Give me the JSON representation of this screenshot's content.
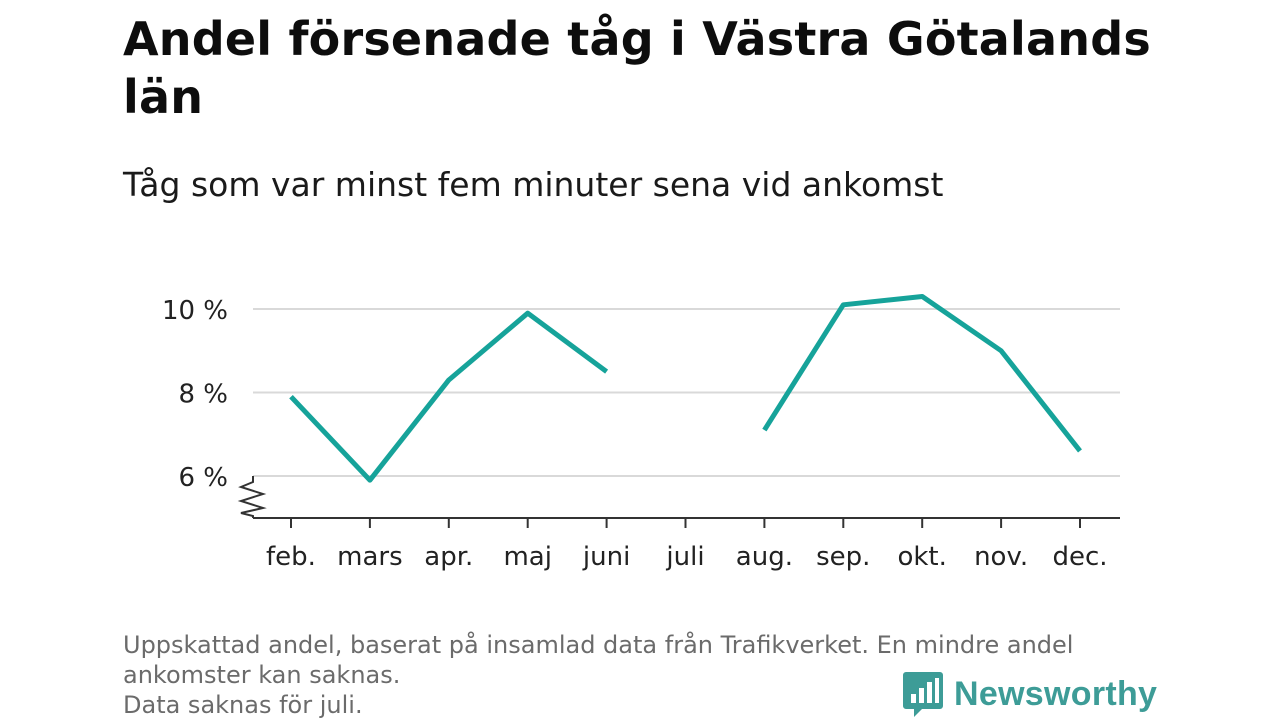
{
  "header": {
    "title": "Andel försenade tåg i Västra Götalands län",
    "subtitle": "Tåg som var minst fem minuter sena vid ankomst"
  },
  "chart_data": {
    "type": "line",
    "categories": [
      "feb.",
      "mars",
      "apr.",
      "maj",
      "juni",
      "juli",
      "aug.",
      "sep.",
      "okt.",
      "nov.",
      "dec."
    ],
    "series": [
      {
        "values": [
          7.9,
          5.9,
          8.3,
          9.9,
          8.5,
          null,
          7.1,
          10.1,
          10.3,
          9.0,
          6.6
        ]
      }
    ],
    "yticks": [
      6,
      8,
      10
    ],
    "ytick_labels": [
      "6 %",
      "8 %",
      "10 %"
    ],
    "ylim": [
      5.0,
      10.5
    ],
    "axis_break": true,
    "grid": true,
    "line_color": "#16a39a",
    "grid_color": "#d9d9d9",
    "axis_color": "#333333"
  },
  "footnote": {
    "line1": "Uppskattad andel, baserat på insamlad data från Trafikverket. En mindre andel",
    "line2": "ankomster kan saknas.",
    "line3": "Data saknas för juli."
  },
  "brand": {
    "name": "Newsworthy",
    "icon": "newsworthy-logo-icon",
    "color": "#3d9c97"
  }
}
